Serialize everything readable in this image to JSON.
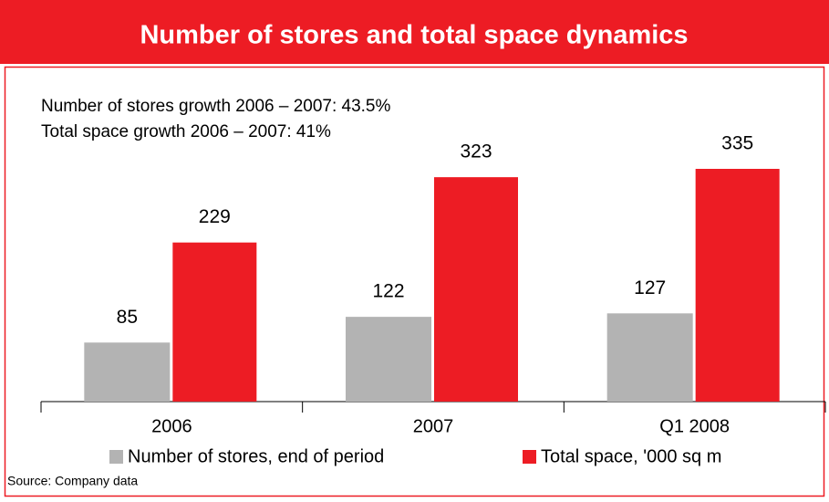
{
  "chart_data": {
    "type": "bar",
    "title": "Number of stores and total space dynamics",
    "annotations": [
      "Number of stores growth 2006 – 2007: 43.5%",
      "Total space growth 2006 – 2007: 41%"
    ],
    "categories": [
      "2006",
      "2007",
      "Q1 2008"
    ],
    "series": [
      {
        "name": "Number of stores, end of period",
        "color": "#b3b3b3",
        "values": [
          85,
          122,
          127
        ]
      },
      {
        "name": "Total space, '000 sq m",
        "color": "#ed1c24",
        "values": [
          229,
          323,
          335
        ]
      }
    ],
    "source": "Source: Company data"
  }
}
